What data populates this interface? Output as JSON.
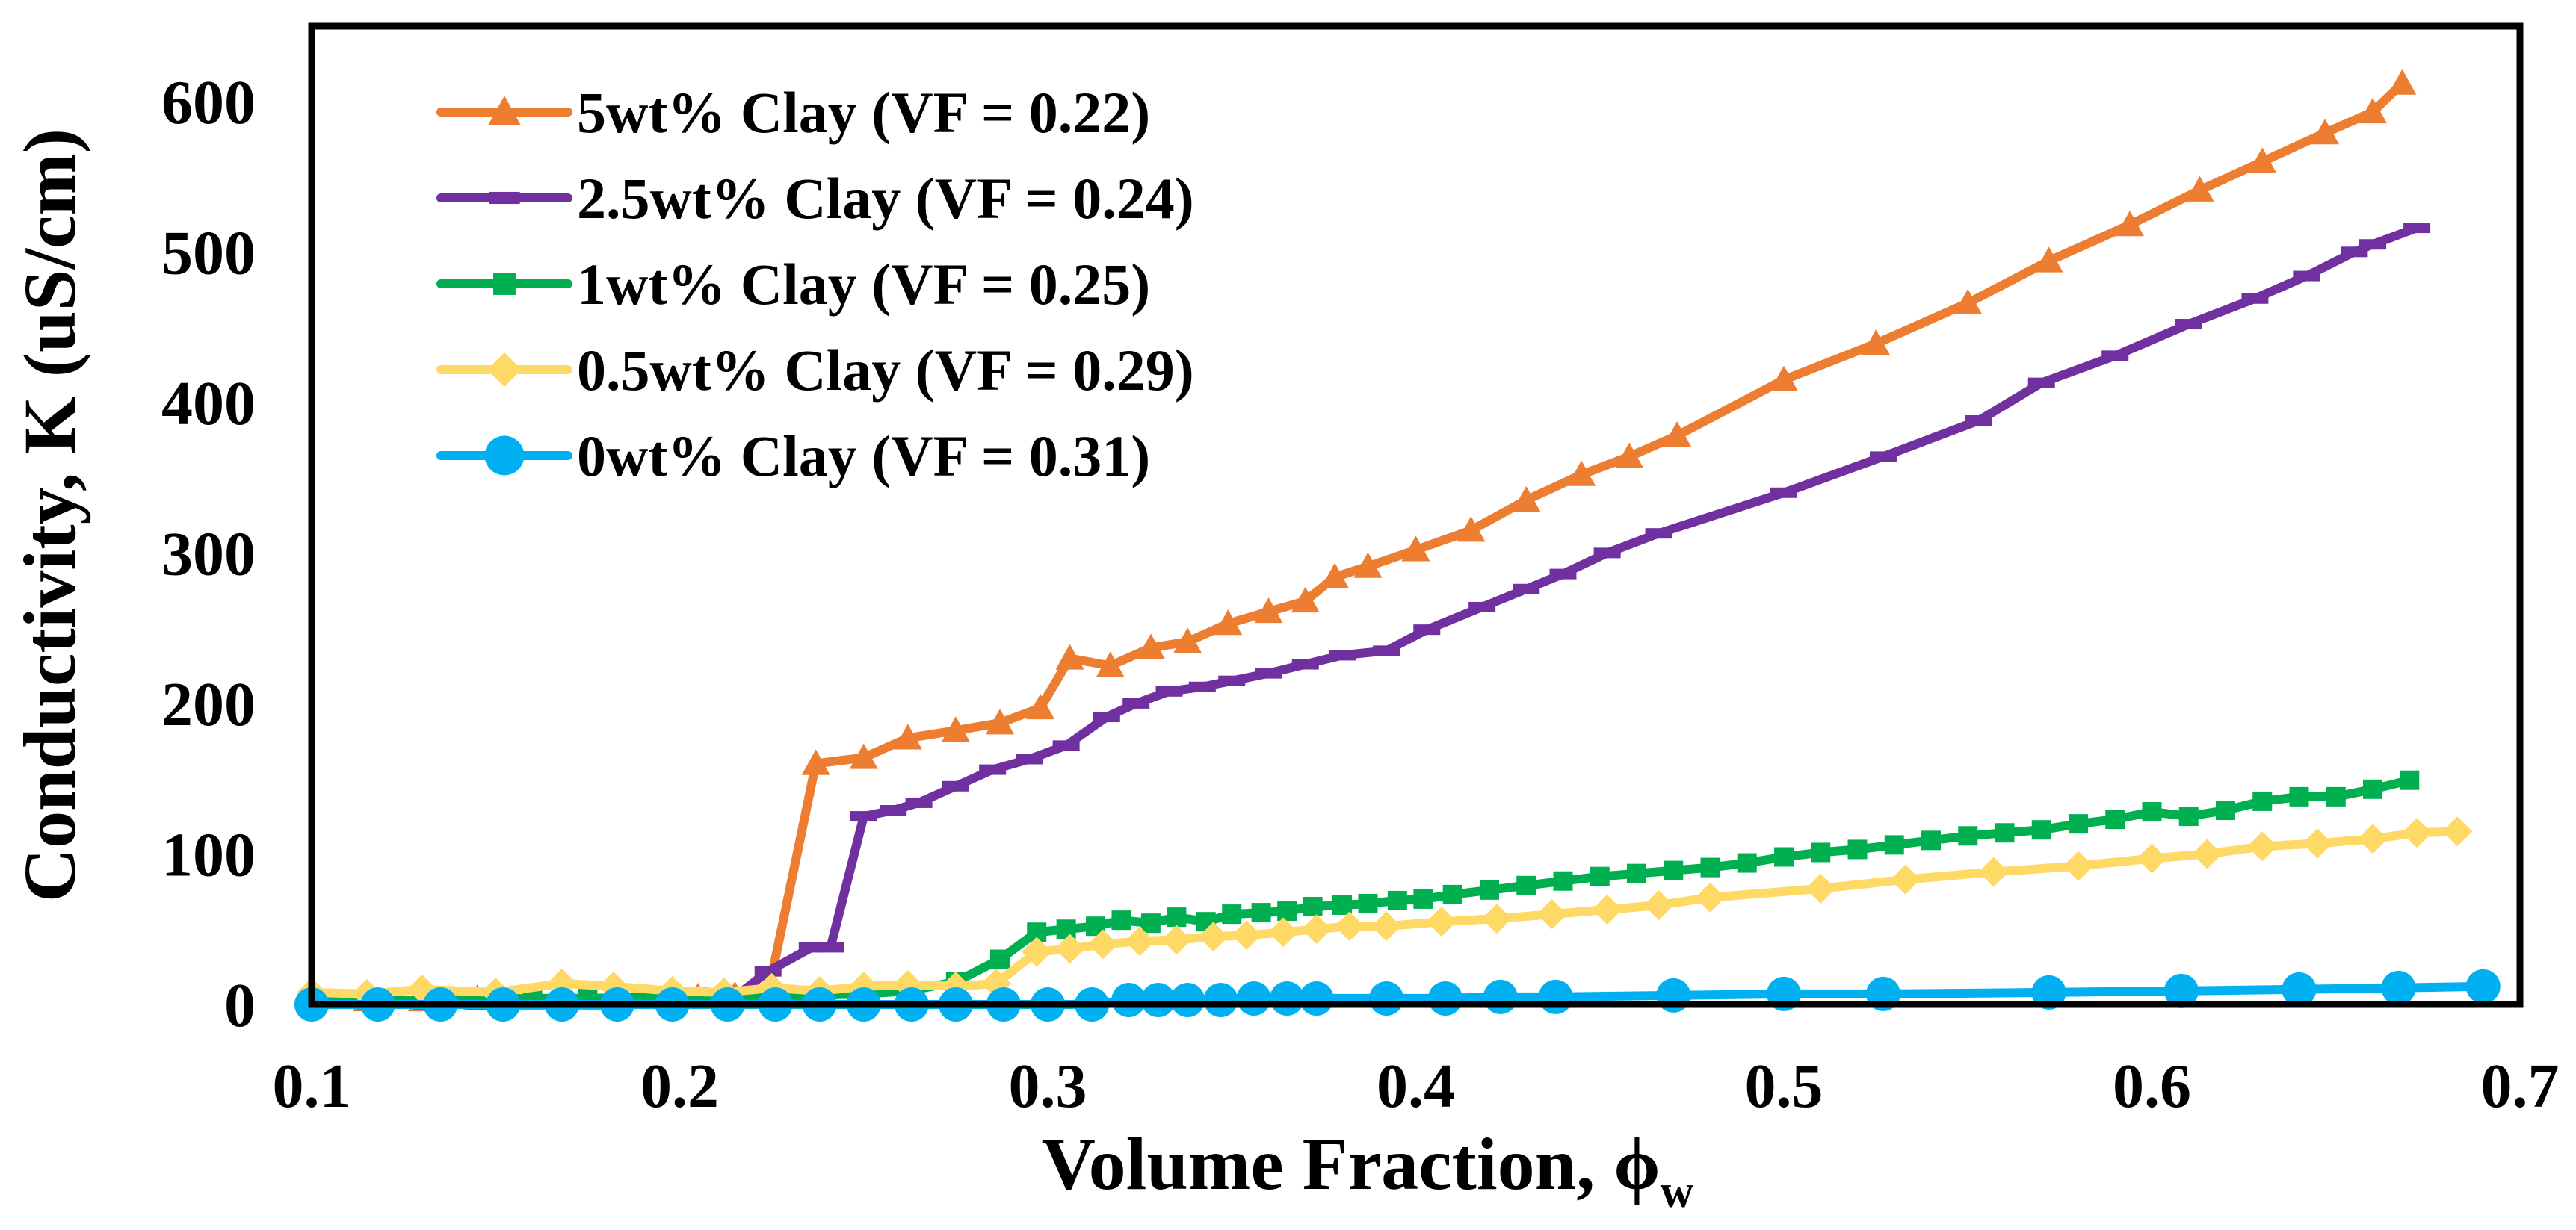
{
  "chart_data": {
    "type": "line",
    "title": "",
    "xlabel": "Volume Fraction, ",
    "xlabel_symbol": "ϕ",
    "xlabel_subscript": "w",
    "ylabel": "Conductivity, K (uS/cm)",
    "xlim": [
      0.1,
      0.7
    ],
    "ylim": [
      0,
      650
    ],
    "xticks": [
      0.1,
      0.2,
      0.3,
      0.4,
      0.5,
      0.6,
      0.7
    ],
    "xtick_labels": [
      "0.1",
      "0.2",
      "0.3",
      "0.4",
      "0.5",
      "0.6",
      "0.7"
    ],
    "yticks": [
      0,
      100,
      200,
      300,
      400,
      500,
      600
    ],
    "ytick_labels": [
      "0",
      "100",
      "200",
      "300",
      "400",
      "500",
      "600"
    ],
    "grid": false,
    "legend_position": "top-left",
    "series": [
      {
        "name": "5wt% Clay (VF = 0.22)",
        "color": "#ED7D31",
        "marker": "triangle",
        "x": [
          0.1,
          0.115,
          0.13,
          0.145,
          0.16,
          0.175,
          0.19,
          0.205,
          0.215,
          0.224,
          0.237,
          0.25,
          0.262,
          0.275,
          0.287,
          0.298,
          0.306,
          0.317,
          0.328,
          0.338,
          0.349,
          0.36,
          0.37,
          0.378,
          0.387,
          0.4,
          0.415,
          0.43,
          0.445,
          0.458,
          0.471,
          0.5,
          0.525,
          0.55,
          0.572,
          0.594,
          0.613,
          0.63,
          0.647,
          0.66,
          0.668
        ],
        "y": [
          3,
          3,
          3,
          4,
          4,
          4,
          5,
          5,
          6,
          7,
          160,
          164,
          177,
          182,
          187,
          197,
          230,
          225,
          237,
          241,
          253,
          261,
          268,
          284,
          291,
          302,
          315,
          335,
          352,
          364,
          378,
          415,
          439,
          466,
          494,
          518,
          541,
          560,
          579,
          593,
          612
        ]
      },
      {
        "name": "2.5wt% Clay (VF = 0.24)",
        "color": "#7030A0",
        "marker": "dash",
        "x": [
          0.1,
          0.115,
          0.13,
          0.145,
          0.16,
          0.175,
          0.19,
          0.205,
          0.215,
          0.224,
          0.236,
          0.241,
          0.25,
          0.258,
          0.265,
          0.275,
          0.285,
          0.295,
          0.305,
          0.316,
          0.324,
          0.333,
          0.342,
          0.35,
          0.36,
          0.37,
          0.38,
          0.392,
          0.403,
          0.418,
          0.43,
          0.44,
          0.452,
          0.466,
          0.5,
          0.527,
          0.553,
          0.57,
          0.59,
          0.61,
          0.628,
          0.642,
          0.655,
          0.66,
          0.672
        ],
        "y": [
          2,
          2,
          2,
          3,
          3,
          3,
          4,
          4,
          5,
          22,
          38,
          38,
          125,
          129,
          134,
          145,
          156,
          163,
          172,
          191,
          200,
          208,
          211,
          215,
          220,
          226,
          232,
          235,
          249,
          264,
          276,
          286,
          300,
          313,
          340,
          364,
          388,
          413,
          431,
          452,
          469,
          484,
          500,
          505,
          516
        ]
      },
      {
        "name": "1wt% Clay (VF = 0.25)",
        "color": "#00B050",
        "marker": "square",
        "x": [
          0.1,
          0.115,
          0.13,
          0.145,
          0.16,
          0.175,
          0.19,
          0.205,
          0.22,
          0.235,
          0.25,
          0.262,
          0.275,
          0.287,
          0.297,
          0.305,
          0.313,
          0.32,
          0.328,
          0.335,
          0.343,
          0.35,
          0.358,
          0.365,
          0.372,
          0.38,
          0.387,
          0.395,
          0.402,
          0.41,
          0.42,
          0.43,
          0.44,
          0.45,
          0.46,
          0.47,
          0.48,
          0.49,
          0.5,
          0.51,
          0.52,
          0.53,
          0.54,
          0.55,
          0.56,
          0.57,
          0.58,
          0.59,
          0.6,
          0.61,
          0.62,
          0.63,
          0.64,
          0.65,
          0.66,
          0.67
        ],
        "y": [
          3,
          3,
          3,
          3,
          4,
          4,
          4,
          5,
          5,
          6,
          7,
          9,
          15,
          30,
          48,
          50,
          52,
          56,
          54,
          58,
          55,
          60,
          61,
          62,
          65,
          66,
          67,
          69,
          70,
          73,
          76,
          79,
          82,
          85,
          87,
          89,
          91,
          94,
          98,
          101,
          103,
          106,
          109,
          112,
          114,
          116,
          120,
          123,
          128,
          125,
          129,
          135,
          138,
          138,
          143,
          149
        ]
      },
      {
        "name": "0.5wt% Clay (VF = 0.29)",
        "color": "#FFD966",
        "marker": "diamond",
        "x": [
          0.1,
          0.115,
          0.13,
          0.15,
          0.168,
          0.182,
          0.198,
          0.212,
          0.225,
          0.238,
          0.25,
          0.262,
          0.275,
          0.286,
          0.297,
          0.306,
          0.315,
          0.325,
          0.335,
          0.345,
          0.354,
          0.364,
          0.373,
          0.382,
          0.392,
          0.407,
          0.422,
          0.437,
          0.452,
          0.466,
          0.48,
          0.51,
          0.533,
          0.557,
          0.58,
          0.6,
          0.615,
          0.63,
          0.645,
          0.66,
          0.672,
          0.683
        ],
        "y": [
          8,
          7,
          10,
          8,
          14,
          12,
          9,
          8,
          11,
          9,
          12,
          13,
          12,
          14,
          35,
          37,
          40,
          42,
          43,
          45,
          46,
          48,
          50,
          52,
          52,
          55,
          57,
          60,
          63,
          66,
          71,
          77,
          83,
          88,
          92,
          97,
          100,
          105,
          107,
          110,
          114,
          115
        ]
      },
      {
        "name": "0wt% Clay (VF = 0.31)",
        "color": "#00B0F0",
        "marker": "circle",
        "x": [
          0.1,
          0.118,
          0.135,
          0.152,
          0.168,
          0.183,
          0.198,
          0.213,
          0.226,
          0.238,
          0.25,
          0.263,
          0.275,
          0.288,
          0.3,
          0.312,
          0.322,
          0.33,
          0.338,
          0.347,
          0.356,
          0.365,
          0.373,
          0.392,
          0.408,
          0.423,
          0.438,
          0.47,
          0.5,
          0.527,
          0.572,
          0.608,
          0.64,
          0.667,
          0.69
        ],
        "y": [
          0,
          0,
          0,
          0,
          0,
          0,
          0,
          0,
          0,
          0,
          0,
          0,
          0,
          0,
          0,
          0,
          3,
          3,
          3,
          3,
          4,
          4,
          4,
          4,
          4,
          5,
          5,
          6,
          7,
          7,
          8,
          9,
          10,
          11,
          12
        ]
      }
    ]
  }
}
